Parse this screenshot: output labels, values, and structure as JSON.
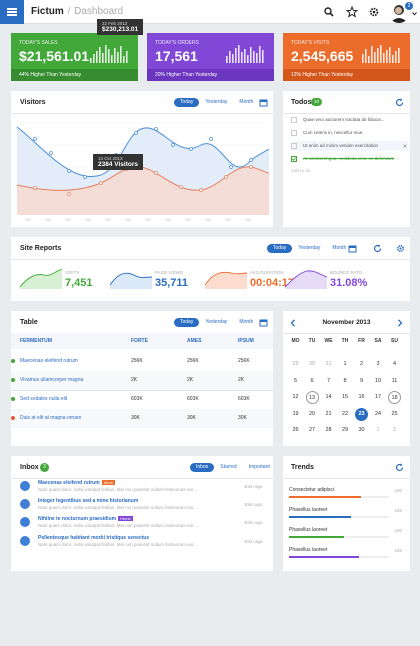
{
  "app": {
    "brand": "Fictum",
    "separator": "/",
    "crumb": "Dashboard",
    "notifications": "2"
  },
  "colors": {
    "accent": "#2a6cc2",
    "green": "#3da634",
    "purple": "#7e45d6",
    "orange": "#eb6a2a",
    "red": "#e45a3d"
  },
  "stats": [
    {
      "label": "Today's Sales",
      "value": "$21,561.01",
      "footer": "44% Higher Than Yesterday"
    },
    {
      "label": "Today's Orders",
      "value": "17,561",
      "footer": "20% Higher Than Yesterday"
    },
    {
      "label": "Today's Visits",
      "value": "2,545,665",
      "footer": "12% Higher Than Yesterday"
    }
  ],
  "stat_tooltip": {
    "date": "22 Feb 2013",
    "value": "$230,213.01"
  },
  "visitors": {
    "title": "Visitors",
    "tabs": [
      "Today",
      "Yesterday",
      "Month"
    ],
    "tooltip_date": "13 Oct 2013",
    "tooltip_value": "2384 Visitors"
  },
  "todos": {
    "title": "Todos",
    "count": "10",
    "items": [
      {
        "text": "Quae vero auctorem tractata ab fiducia...",
        "checked": false
      },
      {
        "text": "Cum ceteris in, nescellur mue.",
        "checked": false
      },
      {
        "text": "Ut enim ad minim veniam exercitation",
        "checked": false
      },
      {
        "text": "At nimirus lingua, vestibula crise ex defensum",
        "checked": true
      }
    ],
    "placeholder": "Add to do"
  },
  "site_reports": {
    "title": "Site Reports",
    "tabs": [
      "Today",
      "Yesterday",
      "Month"
    ],
    "items": [
      {
        "label": "Visits",
        "value": "7,451"
      },
      {
        "label": "Page Views",
        "value": "35,711"
      },
      {
        "label": "Avg.Duration",
        "value": "00:04:17"
      },
      {
        "label": "Bounce Rate",
        "value": "31.08%"
      }
    ]
  },
  "table": {
    "title": "Table",
    "tabs": [
      "Today",
      "Yesterday",
      "Month"
    ],
    "headers": [
      "Fermentum",
      "Forte",
      "Ames",
      "Ipsum"
    ],
    "rows": [
      [
        "Maecenas eleifend rutrum",
        "256K",
        "256K",
        "256K"
      ],
      [
        "Vivamus ullamcorper magna",
        "2K",
        "2K",
        "2K"
      ],
      [
        "Sed sodales nulla elit",
        "603K",
        "603K",
        "603K"
      ],
      [
        "Duis at elit at magna ornare",
        "30K",
        "30K",
        "30K"
      ]
    ]
  },
  "calendar": {
    "month": "November 2013",
    "weekdays": [
      "MO",
      "TU",
      "WE",
      "TH",
      "FR",
      "SA",
      "SU"
    ],
    "weeks": [
      [
        "29",
        "30",
        "31",
        "1",
        "2",
        "3",
        "4"
      ],
      [
        "5",
        "6",
        "7",
        "8",
        "9",
        "10",
        "11"
      ],
      [
        "12",
        "13",
        "14",
        "15",
        "16",
        "17",
        "18"
      ],
      [
        "19",
        "20",
        "21",
        "22",
        "23",
        "24",
        "25"
      ],
      [
        "26",
        "27",
        "28",
        "29",
        "30",
        "1",
        "2"
      ]
    ],
    "selected": "23",
    "outlined": [
      "13",
      "18"
    ]
  },
  "inbox": {
    "title": "Inbox",
    "count": "3",
    "tabs": [
      "Inbox",
      "Starred",
      "Important"
    ],
    "items": [
      {
        "subject": "Maecenas eleifend rutrum",
        "tag": "Work",
        "preview": "Nam quam dolor, nulla volutpat finibus. Mei non puerdet nullum festivorum eor...",
        "time": "3min ago"
      },
      {
        "subject": "Integer legentibus sed a mine historianum",
        "tag": "",
        "preview": "Nam quam dolor, nulla volutpat finibus. Mei non puerdet nullum festivorum eor...",
        "time": "3min ago"
      },
      {
        "subject": "Nihilne te nocturnum praesidium",
        "tag": "Home",
        "preview": "Nam quam dolor, nulla volutpat finibus. Mei non puerdet nullum festivorum eor...",
        "time": "3min ago"
      },
      {
        "subject": "Pellentesque habitant morbi tristique senectus",
        "tag": "",
        "preview": "Nam quam dolor, nulla volutpat finibus. Mei non puerdet nullum festivorum eor...",
        "time": "3min ago"
      }
    ]
  },
  "trends": {
    "title": "Trends",
    "items": [
      {
        "name": "Consectetur adipisci",
        "pct": "x20",
        "fill": 0.72
      },
      {
        "name": "Phasellus laoreet",
        "pct": "x20",
        "fill": 0.62
      },
      {
        "name": "Phasellus laoreet",
        "pct": "x20",
        "fill": 0.55
      },
      {
        "name": "Phasellus laoreet",
        "pct": "x20",
        "fill": 0.7
      }
    ]
  }
}
